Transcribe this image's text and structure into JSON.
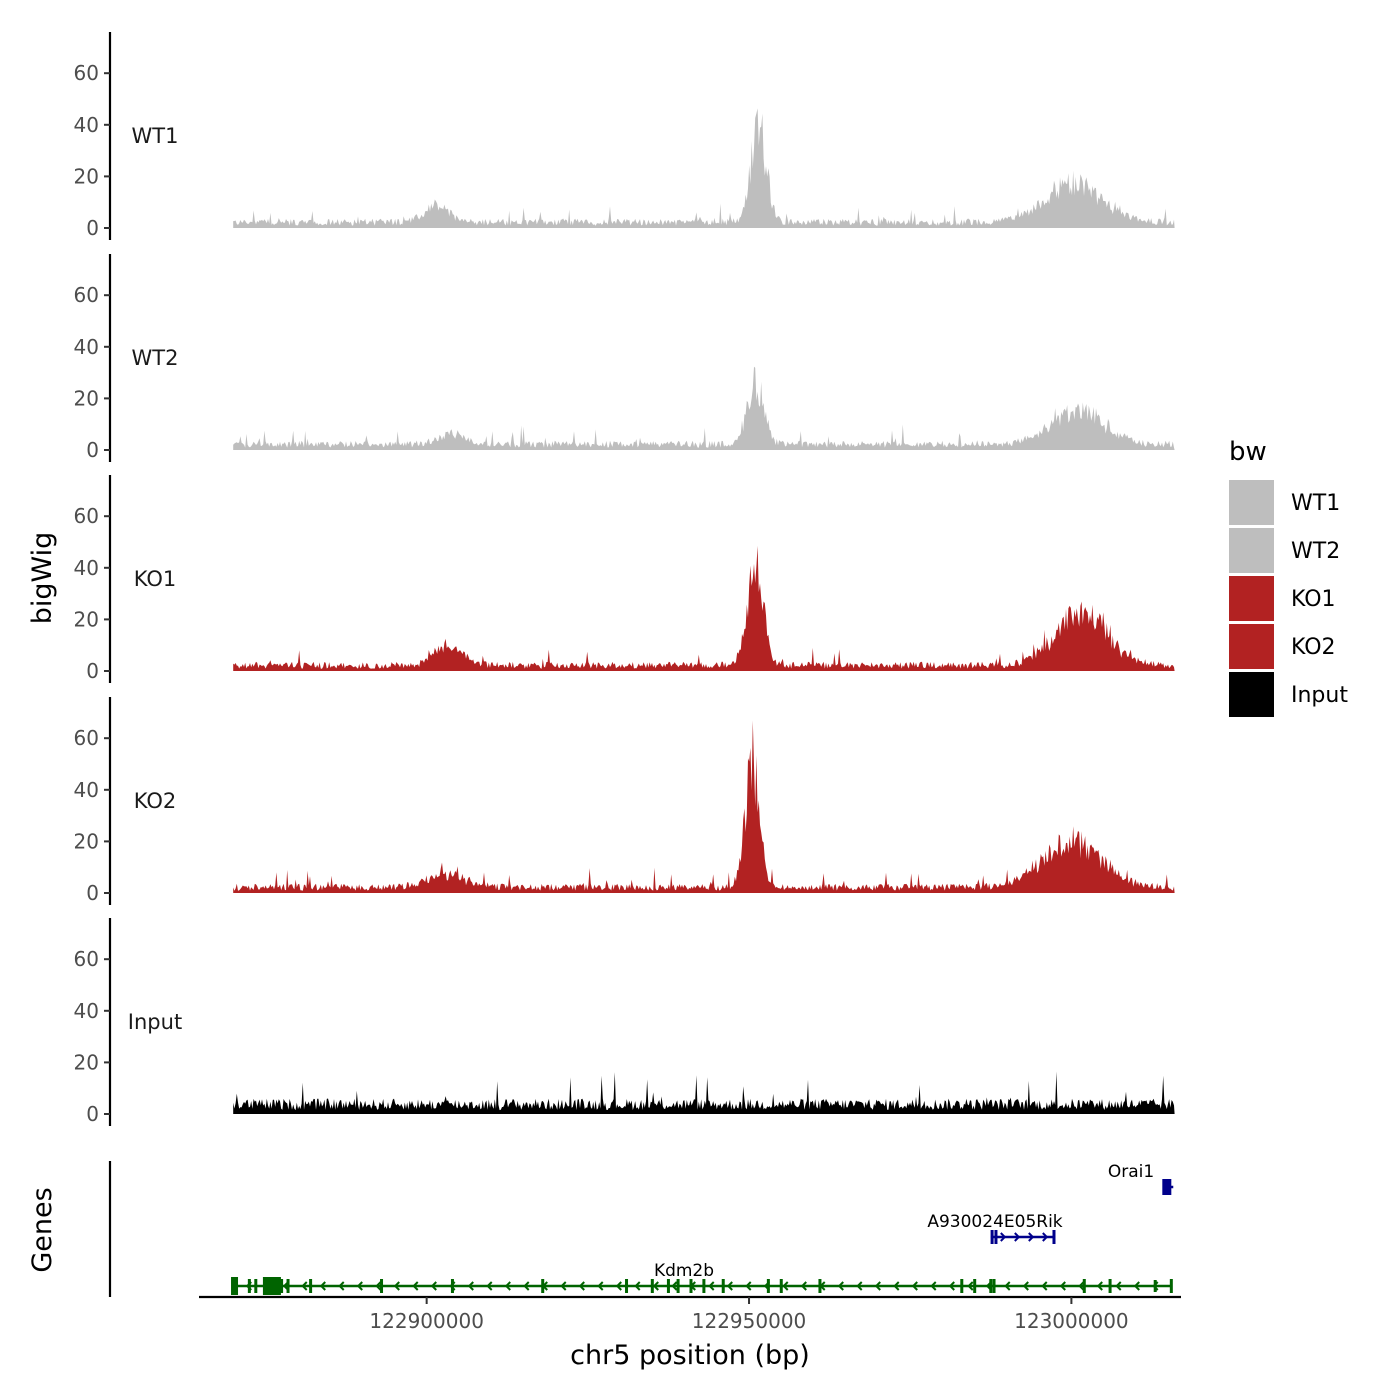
{
  "chart_data": {
    "type": "area",
    "chromosome": "chr5",
    "xlabel": "chr5 position (bp)",
    "ylabel": "bigWig",
    "genes_label": "Genes",
    "xlim": [
      122865000,
      123017000
    ],
    "ylim": [
      0,
      75
    ],
    "xticks": [
      122900000,
      122950000,
      123000000
    ],
    "xtick_labels": [
      "122900000",
      "122950000",
      "123000000"
    ],
    "yticks": [
      0,
      20,
      40,
      60
    ],
    "ytick_labels": [
      "0",
      "20",
      "40",
      "60"
    ],
    "legend": {
      "title": "bw",
      "position": "right",
      "entries": [
        {
          "label": "WT1",
          "color": "#bebebe"
        },
        {
          "label": "WT2",
          "color": "#bebebe"
        },
        {
          "label": "KO1",
          "color": "#b22222"
        },
        {
          "label": "KO2",
          "color": "#b22222"
        },
        {
          "label": "Input",
          "color": "#000000"
        }
      ]
    },
    "region_start": 122870000,
    "region_end": 123016000,
    "tracks": [
      {
        "name": "WT1",
        "color": "#bebebe",
        "baseline": 3,
        "noise": 3,
        "peaks": [
          {
            "center": 122901500,
            "height": 8,
            "width": 2000
          },
          {
            "center": 122951500,
            "height": 45,
            "width": 1200
          },
          {
            "center": 123000500,
            "height": 18,
            "width": 4500
          }
        ]
      },
      {
        "name": "WT2",
        "color": "#bebebe",
        "baseline": 3,
        "noise": 3,
        "peaks": [
          {
            "center": 122904000,
            "height": 5,
            "width": 2000
          },
          {
            "center": 122951000,
            "height": 28,
            "width": 1300
          },
          {
            "center": 123001000,
            "height": 16,
            "width": 4000
          }
        ]
      },
      {
        "name": "KO1",
        "color": "#b22222",
        "baseline": 3,
        "noise": 3,
        "peaks": [
          {
            "center": 122903500,
            "height": 9,
            "width": 2200
          },
          {
            "center": 122951000,
            "height": 44,
            "width": 1300
          },
          {
            "center": 123001500,
            "height": 24,
            "width": 4000
          }
        ]
      },
      {
        "name": "KO2",
        "color": "#b22222",
        "baseline": 3,
        "noise": 3,
        "peaks": [
          {
            "center": 122903000,
            "height": 6,
            "width": 3000
          },
          {
            "center": 122950500,
            "height": 60,
            "width": 1100
          },
          {
            "center": 123000000,
            "height": 22,
            "width": 4500
          }
        ]
      },
      {
        "name": "Input",
        "color": "#000000",
        "baseline": 5,
        "noise": 5,
        "peaks": []
      }
    ],
    "genes": [
      {
        "name": "Kdm2b",
        "strand": "-",
        "start": 122870000,
        "end": 123015500,
        "color": "#006400",
        "row": 0,
        "exons": [
          122870200,
          122872500,
          122873500,
          122876000,
          122876800,
          122877500,
          122878500,
          122882000,
          122893000,
          122904000,
          122918000,
          122931000,
          122935000,
          122937500,
          122939000,
          122941000,
          122943000,
          122946000,
          122953000,
          122955000,
          122961000,
          122983000,
          122985000,
          122987500,
          122988000,
          123002000,
          123006000,
          123013000,
          123015500
        ]
      },
      {
        "name": "A930024E05Rik",
        "strand": "+",
        "start": 122987500,
        "end": 122997500,
        "color": "#00008b",
        "row": 1,
        "exons": [
          122987700,
          122988300,
          122997300
        ]
      },
      {
        "name": "Orai1",
        "strand": "+",
        "start": 123014700,
        "end": 123015800,
        "color": "#00008b",
        "row": 2,
        "exons": [
          123014800
        ]
      }
    ]
  }
}
